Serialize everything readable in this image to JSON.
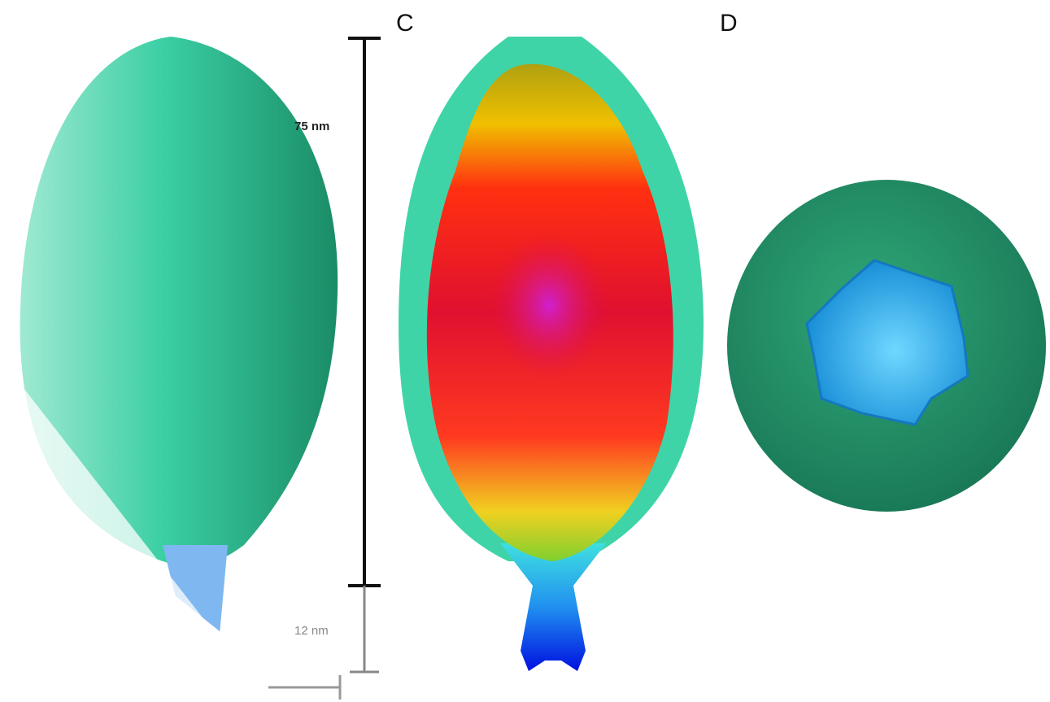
{
  "panels": [
    {
      "label": "C"
    },
    {
      "label": "D"
    }
  ],
  "scale_bars": [
    {
      "label": "75 nm"
    },
    {
      "label": "12 nm"
    }
  ]
}
